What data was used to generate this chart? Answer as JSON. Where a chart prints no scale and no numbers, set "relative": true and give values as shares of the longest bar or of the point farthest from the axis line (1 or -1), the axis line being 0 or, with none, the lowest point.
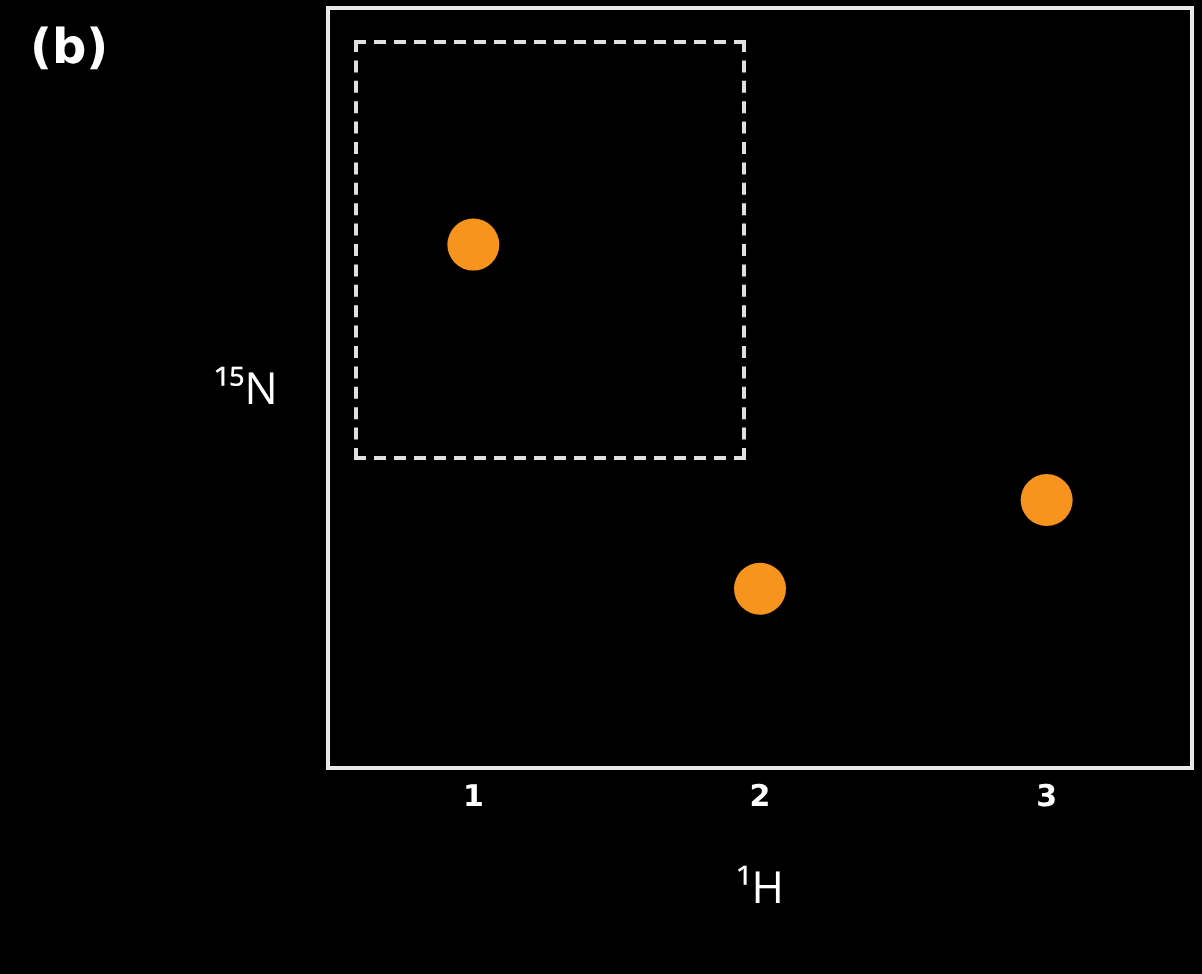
{
  "chart_data": {
    "type": "scatter",
    "title": "(b)",
    "xlabel": "¹H",
    "ylabel": "¹⁵N",
    "categories": [
      "1",
      "2",
      "3"
    ],
    "series": [
      {
        "color": "#f7941d",
        "values": [
          1,
          0.34,
          0.51
        ]
      }
    ],
    "relative": true,
    "marker": "circle"
  }
}
